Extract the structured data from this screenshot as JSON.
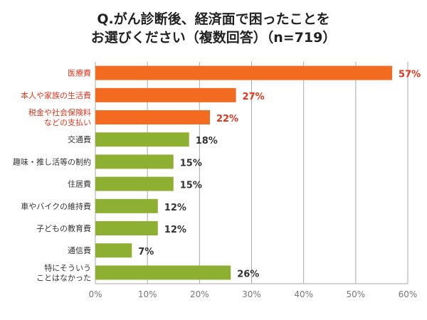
{
  "chart_data": {
    "type": "bar",
    "orientation": "horizontal",
    "title_lines": [
      "Q.がん診断後、経済面で困ったことを",
      "お選びください（複数回答）（n=719）"
    ],
    "categories": [
      [
        "医療費"
      ],
      [
        "本人や家族の生活費"
      ],
      [
        "税金や社会保険料",
        "などの支払い"
      ],
      [
        "交通費"
      ],
      [
        "趣味・推し活等の制約"
      ],
      [
        "住居費"
      ],
      [
        "車やバイクの維持費"
      ],
      [
        "子どもの教育費"
      ],
      [
        "通信費"
      ],
      [
        "特にそういう",
        "ことはなかった"
      ]
    ],
    "values": [
      57,
      27,
      22,
      18,
      15,
      15,
      12,
      12,
      7,
      26
    ],
    "value_labels": [
      "57%",
      "27%",
      "22%",
      "18%",
      "15%",
      "15%",
      "12%",
      "12%",
      "7%",
      "26%"
    ],
    "highlighted": [
      true,
      true,
      true,
      false,
      false,
      false,
      false,
      false,
      false,
      false
    ],
    "xlim": [
      0,
      60
    ],
    "xticks": [
      "0%",
      "10%",
      "20%",
      "30%",
      "40%",
      "50%",
      "60%"
    ],
    "xlabel": "",
    "ylabel": "",
    "grid": true,
    "colors": {
      "highlight": "#f26b21",
      "normal": "#8db032",
      "highlight_text": "#e0361c",
      "normal_text": "#333333",
      "grid": "#aaaaaa",
      "tick_text": "#777777"
    }
  }
}
